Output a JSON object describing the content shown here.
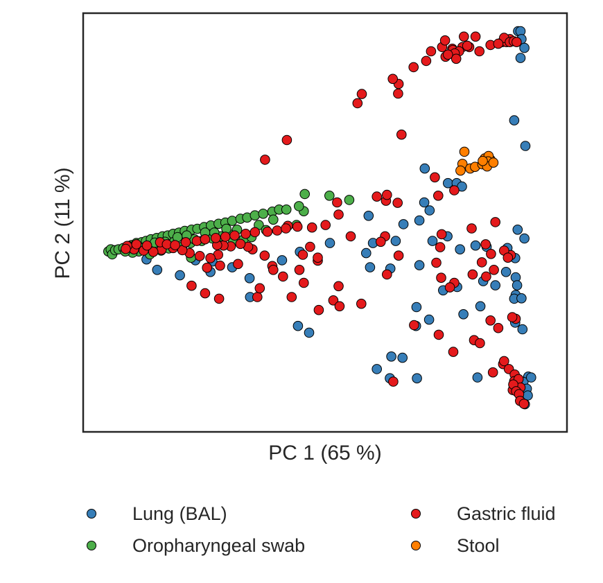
{
  "chart_data": {
    "type": "scatter",
    "title": "",
    "xlabel": "PC 1 (65 %)",
    "ylabel": "PC 2 (11 %)",
    "xlim": [
      0,
      100
    ],
    "ylim": [
      0,
      100
    ],
    "xticks": [],
    "yticks": [],
    "grid": false,
    "legend_position": "bottom",
    "series": [
      {
        "name": "Lung (BAL)",
        "color": "#377eb8",
        "points": [
          [
            89.9,
            95.7
          ],
          [
            90.4,
            95.7
          ],
          [
            90.6,
            93.8
          ],
          [
            91.2,
            91.7
          ],
          [
            90.4,
            89.3
          ],
          [
            89.1,
            74.4
          ],
          [
            91.4,
            68.3
          ],
          [
            70.6,
            62.9
          ],
          [
            75.4,
            59.4
          ],
          [
            77.2,
            59.4
          ],
          [
            78.3,
            58.6
          ],
          [
            70.5,
            54.8
          ],
          [
            71.6,
            52.9
          ],
          [
            69.5,
            50.5
          ],
          [
            59.0,
            51.6
          ],
          [
            66.2,
            49.6
          ],
          [
            75.3,
            46.7
          ],
          [
            64.6,
            45.6
          ],
          [
            59.9,
            45.1
          ],
          [
            58.5,
            42.7
          ],
          [
            51.0,
            45.1
          ],
          [
            72.2,
            45.6
          ],
          [
            89.8,
            48.3
          ],
          [
            91.2,
            46.2
          ],
          [
            81.1,
            44.5
          ],
          [
            83.4,
            44.2
          ],
          [
            87.7,
            43.9
          ],
          [
            89.3,
            41.5
          ],
          [
            77.9,
            43.6
          ],
          [
            69.5,
            39.8
          ],
          [
            59.3,
            39.3
          ],
          [
            63.5,
            39.0
          ],
          [
            87.4,
            38.2
          ],
          [
            89.4,
            36.9
          ],
          [
            89.7,
            35.0
          ],
          [
            77.3,
            34.6
          ],
          [
            74.4,
            33.8
          ],
          [
            82.7,
            36.0
          ],
          [
            85.2,
            35.0
          ],
          [
            89.4,
            32.7
          ],
          [
            68.9,
            29.8
          ],
          [
            68.8,
            25.3
          ],
          [
            71.5,
            26.8
          ],
          [
            78.6,
            28.1
          ],
          [
            82.1,
            30.0
          ],
          [
            89.1,
            31.8
          ],
          [
            90.6,
            31.9
          ],
          [
            89.3,
            26.1
          ],
          [
            90.8,
            24.5
          ],
          [
            44.8,
            43.0
          ],
          [
            41.1,
            41.0
          ],
          [
            34.4,
            36.7
          ],
          [
            30.8,
            39.3
          ],
          [
            26.7,
            40.7
          ],
          [
            23.2,
            41.0
          ],
          [
            15.3,
            38.7
          ],
          [
            13.1,
            41.2
          ],
          [
            20.0,
            37.4
          ],
          [
            26.3,
            38.2
          ],
          [
            34.5,
            32.2
          ],
          [
            44.4,
            25.3
          ],
          [
            46.7,
            23.7
          ],
          [
            63.7,
            18.0
          ],
          [
            66.0,
            17.7
          ],
          [
            63.4,
            12.8
          ],
          [
            60.7,
            15.0
          ],
          [
            69.0,
            12.8
          ],
          [
            81.5,
            13.0
          ],
          [
            92.0,
            13.2
          ],
          [
            91.0,
            11.9
          ],
          [
            92.6,
            13.0
          ],
          [
            91.7,
            10.3
          ],
          [
            91.9,
            8.7
          ],
          [
            91.3,
            6.6
          ]
        ]
      },
      {
        "name": "Oropharyngeal swab",
        "color": "#4daf4a",
        "points": [
          [
            5.2,
            43.1
          ],
          [
            5.7,
            43.6
          ],
          [
            6.0,
            42.4
          ],
          [
            6.6,
            43.4
          ],
          [
            7.3,
            43.6
          ],
          [
            8.3,
            43.9
          ],
          [
            9.2,
            44.2
          ],
          [
            10.0,
            44.6
          ],
          [
            11.0,
            45.1
          ],
          [
            12.1,
            45.3
          ],
          [
            13.0,
            45.6
          ],
          [
            14.0,
            46.0
          ],
          [
            15.2,
            46.3
          ],
          [
            16.4,
            46.7
          ],
          [
            17.5,
            46.9
          ],
          [
            18.6,
            47.3
          ],
          [
            19.8,
            47.6
          ],
          [
            21.0,
            48.0
          ],
          [
            22.4,
            48.3
          ],
          [
            23.6,
            48.5
          ],
          [
            25.0,
            48.9
          ],
          [
            26.4,
            49.3
          ],
          [
            28.0,
            49.7
          ],
          [
            29.4,
            50.0
          ],
          [
            30.8,
            50.4
          ],
          [
            32.5,
            50.9
          ],
          [
            33.9,
            51.2
          ],
          [
            35.5,
            51.7
          ],
          [
            37.2,
            52.1
          ],
          [
            39.1,
            52.6
          ],
          [
            40.5,
            53.1
          ],
          [
            42.0,
            53.1
          ],
          [
            45.6,
            52.7
          ],
          [
            50.9,
            56.4
          ],
          [
            55.0,
            55.4
          ],
          [
            45.8,
            56.8
          ],
          [
            44.6,
            53.9
          ],
          [
            44.1,
            49.4
          ],
          [
            13.8,
            42.4
          ],
          [
            16.1,
            43.3
          ],
          [
            17.7,
            43.8
          ],
          [
            20.5,
            44.3
          ],
          [
            22.2,
            45.1
          ],
          [
            24.5,
            45.6
          ],
          [
            26.7,
            46.2
          ],
          [
            28.4,
            46.7
          ],
          [
            30.5,
            47.1
          ],
          [
            31.0,
            45.6
          ],
          [
            33.2,
            46.0
          ],
          [
            34.8,
            46.5
          ],
          [
            11.5,
            43.1
          ],
          [
            10.2,
            42.8
          ],
          [
            8.7,
            43.1
          ],
          [
            15.3,
            44.6
          ],
          [
            18.8,
            45.4
          ],
          [
            23.0,
            46.0
          ],
          [
            27.1,
            47.6
          ],
          [
            31.8,
            48.3
          ],
          [
            36.3,
            49.4
          ],
          [
            39.3,
            50.7
          ],
          [
            37.8,
            48.2
          ],
          [
            22.3,
            41.6
          ],
          [
            9.3,
            44.4
          ],
          [
            12.6,
            44.0
          ],
          [
            14.8,
            45.2
          ],
          [
            16.9,
            45.4
          ],
          [
            19.5,
            46.5
          ],
          [
            21.4,
            46.9
          ],
          [
            25.2,
            47.6
          ],
          [
            29.6,
            48.5
          ]
        ]
      },
      {
        "name": "Gastric fluid",
        "color": "#e41a1c",
        "points": [
          [
            78.7,
            94.4
          ],
          [
            81.1,
            94.4
          ],
          [
            86.6,
            93.1
          ],
          [
            87.5,
            93.1
          ],
          [
            88.2,
            93.8
          ],
          [
            87.0,
            94.1
          ],
          [
            79.8,
            91.9
          ],
          [
            76.3,
            91.5
          ],
          [
            81.9,
            90.9
          ],
          [
            76.4,
            91.2
          ],
          [
            74.2,
            91.9
          ],
          [
            88.2,
            93.1
          ],
          [
            89.0,
            93.3
          ],
          [
            89.6,
            93.1
          ],
          [
            78.4,
            91.9
          ],
          [
            71.9,
            90.9
          ],
          [
            79.4,
            92.2
          ],
          [
            84.2,
            92.4
          ],
          [
            85.8,
            92.7
          ],
          [
            65.2,
            83.1
          ],
          [
            77.7,
            90.9
          ],
          [
            70.9,
            88.6
          ],
          [
            68.3,
            87.1
          ],
          [
            64.0,
            84.3
          ],
          [
            65.1,
            80.8
          ],
          [
            74.9,
            89.6
          ],
          [
            76.8,
            90.4
          ],
          [
            77.1,
            89.1
          ],
          [
            75.4,
            90.1
          ],
          [
            56.7,
            78.5
          ],
          [
            57.6,
            80.7
          ],
          [
            42.1,
            69.7
          ],
          [
            74.8,
            93.5
          ],
          [
            37.6,
            65.0
          ],
          [
            65.8,
            71.0
          ],
          [
            72.7,
            60.8
          ],
          [
            76.7,
            57.7
          ],
          [
            65.0,
            54.7
          ],
          [
            62.6,
            55.2
          ],
          [
            80.3,
            48.6
          ],
          [
            85.2,
            50.1
          ],
          [
            73.4,
            56.4
          ],
          [
            60.7,
            56.2
          ],
          [
            62.8,
            56.6
          ],
          [
            52.5,
            54.8
          ],
          [
            52.8,
            51.9
          ],
          [
            42.3,
            49.2
          ],
          [
            55.3,
            46.7
          ],
          [
            62.4,
            46.7
          ],
          [
            74.1,
            47.2
          ],
          [
            73.8,
            44.1
          ],
          [
            65.2,
            42.1
          ],
          [
            73.0,
            40.4
          ],
          [
            76.7,
            35.6
          ],
          [
            52.8,
            34.8
          ],
          [
            51.7,
            31.4
          ],
          [
            48.7,
            29.1
          ],
          [
            45.6,
            35.6
          ],
          [
            41.3,
            37.1
          ],
          [
            39.1,
            39.6
          ],
          [
            37.5,
            42.1
          ],
          [
            35.0,
            43.6
          ],
          [
            34.1,
            44.2
          ],
          [
            32.5,
            44.9
          ],
          [
            30.5,
            44.3
          ],
          [
            29.0,
            44.5
          ],
          [
            27.7,
            44.6
          ],
          [
            27.9,
            42.3
          ],
          [
            26.3,
            41.5
          ],
          [
            24.1,
            42.0
          ],
          [
            22.0,
            42.7
          ],
          [
            20.5,
            43.4
          ],
          [
            18.6,
            43.9
          ],
          [
            16.2,
            43.5
          ],
          [
            14.5,
            43.0
          ],
          [
            12.5,
            43.3
          ],
          [
            10.5,
            43.6
          ],
          [
            9.1,
            44.4
          ],
          [
            8.8,
            43.7
          ],
          [
            11.0,
            44.8
          ],
          [
            13.2,
            44.5
          ],
          [
            15.9,
            45.3
          ],
          [
            17.3,
            44.8
          ],
          [
            19.0,
            44.6
          ],
          [
            21.2,
            45.3
          ],
          [
            23.5,
            45.6
          ],
          [
            25.2,
            46.0
          ],
          [
            27.4,
            46.3
          ],
          [
            29.4,
            46.6
          ],
          [
            31.3,
            46.9
          ],
          [
            33.6,
            47.3
          ],
          [
            35.5,
            47.7
          ],
          [
            38.1,
            47.8
          ],
          [
            40.1,
            48.1
          ],
          [
            41.9,
            48.6
          ],
          [
            44.3,
            49.0
          ],
          [
            47.3,
            48.8
          ],
          [
            50.1,
            49.4
          ],
          [
            46.9,
            44.2
          ],
          [
            48.5,
            40.9
          ],
          [
            48.5,
            41.6
          ],
          [
            45.4,
            42.3
          ],
          [
            44.7,
            38.7
          ],
          [
            39.3,
            38.7
          ],
          [
            32.0,
            40.1
          ],
          [
            28.3,
            39.7
          ],
          [
            25.6,
            39.2
          ],
          [
            22.4,
            34.9
          ],
          [
            25.2,
            33.1
          ],
          [
            28.1,
            31.8
          ],
          [
            36.0,
            32.2
          ],
          [
            36.5,
            34.3
          ],
          [
            43.1,
            32.2
          ],
          [
            53.0,
            30.0
          ],
          [
            57.5,
            30.6
          ],
          [
            68.4,
            25.5
          ],
          [
            64.1,
            12.0
          ],
          [
            73.5,
            23.2
          ],
          [
            76.5,
            19.1
          ],
          [
            84.2,
            26.6
          ],
          [
            85.8,
            24.8
          ],
          [
            89.4,
            27.0
          ],
          [
            88.7,
            27.4
          ],
          [
            80.8,
            21.9
          ],
          [
            82.0,
            21.2
          ],
          [
            86.8,
            16.2
          ],
          [
            84.7,
            14.2
          ],
          [
            87.0,
            16.9
          ],
          [
            88.0,
            15.0
          ],
          [
            89.2,
            13.7
          ],
          [
            89.1,
            12.1
          ],
          [
            89.8,
            11.3
          ],
          [
            90.0,
            12.6
          ],
          [
            90.4,
            10.6
          ],
          [
            88.8,
            10.0
          ],
          [
            88.9,
            11.3
          ],
          [
            89.5,
            9.7
          ],
          [
            90.1,
            9.0
          ],
          [
            90.3,
            7.4
          ],
          [
            91.1,
            6.7
          ],
          [
            80.5,
            37.6
          ],
          [
            61.5,
            45.4
          ],
          [
            62.8,
            37.6
          ],
          [
            74.0,
            36.8
          ],
          [
            75.8,
            34.5
          ],
          [
            83.2,
            44.8
          ],
          [
            84.9,
            38.7
          ],
          [
            83.3,
            37.1
          ],
          [
            88.4,
            42.2
          ],
          [
            82.4,
            40.5
          ],
          [
            84.3,
            42.5
          ],
          [
            87.0,
            43.3
          ],
          [
            87.8,
            41.6
          ]
        ]
      },
      {
        "name": "Stool",
        "color": "#ff7f00",
        "points": [
          [
            78.8,
            66.9
          ],
          [
            78.4,
            64.0
          ],
          [
            80.0,
            62.9
          ],
          [
            81.0,
            63.3
          ],
          [
            82.5,
            63.9
          ],
          [
            83.0,
            65.3
          ],
          [
            84.2,
            65.0
          ],
          [
            83.8,
            65.9
          ],
          [
            83.7,
            64.6
          ],
          [
            83.5,
            63.4
          ],
          [
            82.6,
            64.7
          ],
          [
            78.0,
            62.4
          ],
          [
            84.8,
            64.3
          ]
        ]
      }
    ]
  }
}
